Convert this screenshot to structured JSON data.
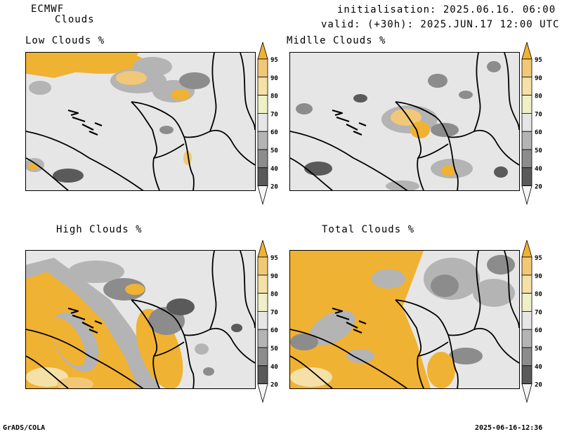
{
  "header": {
    "model": "ECMWF",
    "product": "Clouds",
    "init": "initialisation: 2025.06.16. 06:00 UTC",
    "valid": "valid: (+30h): 2025.JUN.17 12:00 UTC"
  },
  "panels": [
    {
      "title": "Low Clouds %"
    },
    {
      "title": "Midlle Clouds %"
    },
    {
      "title": "High Clouds %"
    },
    {
      "title": "Total Clouds %"
    }
  ],
  "colorbar": {
    "levels": [
      "95",
      "90",
      "80",
      "70",
      "60",
      "50",
      "40",
      "20"
    ],
    "colors": [
      "#f0b232",
      "#f0c878",
      "#f5e0a8",
      "#f0f0c8",
      "#e6e6e6",
      "#b4b4b4",
      "#8c8c8c",
      "#5a5a5a",
      "#f5f5f5"
    ]
  },
  "footer": {
    "left": "GrADS/COLA",
    "right": "2025-06-16-12:36"
  }
}
